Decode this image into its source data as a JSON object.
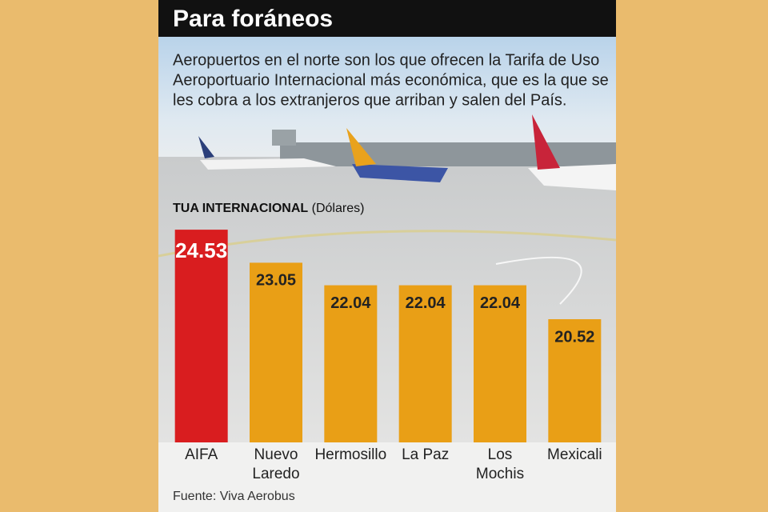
{
  "header": {
    "title": "Para foráneos"
  },
  "intro": {
    "lines": [
      "Aeropuertos en el norte son los que ofrecen la Tarifa de Uso",
      "Aeroportuario Internacional más económica, que es la que se",
      "les cobra a los extranjeros que arriban y salen del País."
    ]
  },
  "chart_data": {
    "type": "bar",
    "title": "TUA INTERNACIONAL",
    "unit": "(Dólares)",
    "categories": [
      "AIFA",
      "Nuevo Laredo",
      "Hermosillo",
      "La Paz",
      "Los Mochis",
      "Mexicali"
    ],
    "values": [
      24.53,
      23.05,
      22.04,
      22.04,
      22.04,
      20.52
    ],
    "colors": [
      "#d91d1f",
      "#e99f16",
      "#e99f16",
      "#e99f16",
      "#e99f16",
      "#e99f16"
    ],
    "ylim": [
      15,
      25
    ]
  },
  "source": "Fuente: Viva Aerobus"
}
